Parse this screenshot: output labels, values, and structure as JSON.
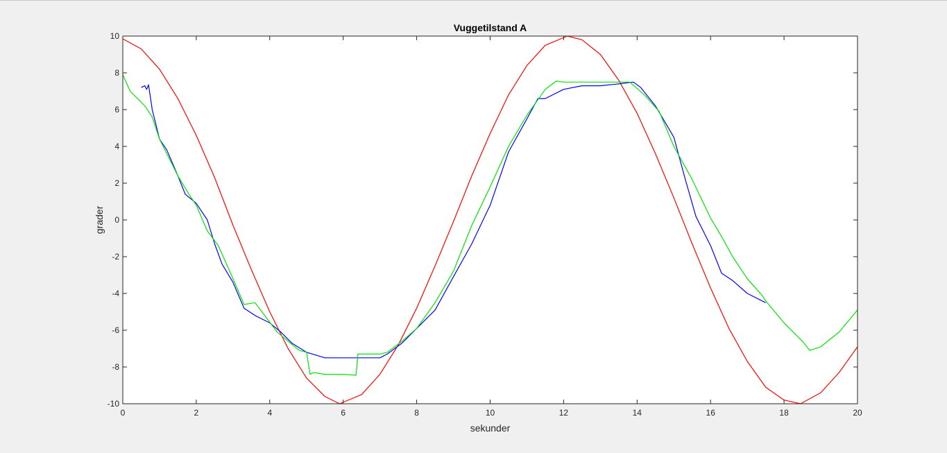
{
  "chart_data": {
    "type": "line",
    "title": "Vuggetilstand A",
    "xlabel": "sekunder",
    "ylabel": "grader",
    "xlim": [
      0,
      20
    ],
    "ylim": [
      -10,
      10
    ],
    "xticks": [
      0,
      2,
      4,
      6,
      8,
      10,
      12,
      14,
      16,
      18,
      20
    ],
    "yticks": [
      -10,
      -8,
      -6,
      -4,
      -2,
      0,
      2,
      4,
      6,
      8,
      10
    ],
    "xtick_labels": [
      "0",
      "2",
      "4",
      "6",
      "8",
      "10",
      "12",
      "14",
      "16",
      "18",
      "20"
    ],
    "ytick_labels": [
      "-10",
      "-8",
      "-6",
      "-4",
      "-2",
      "0",
      "2",
      "4",
      "6",
      "8",
      "10"
    ],
    "grid": false,
    "series": [
      {
        "color": "#ff0000",
        "x": [
          0,
          0.5,
          1,
          1.5,
          2,
          2.5,
          3,
          3.5,
          4,
          4.5,
          5,
          5.5,
          5.9,
          6.5,
          7,
          7.5,
          8,
          8.5,
          9,
          9.5,
          10,
          10.5,
          11,
          11.5,
          12.1,
          12.5,
          13,
          13.5,
          14,
          14.5,
          15,
          15.5,
          16,
          16.5,
          17,
          17.5,
          18,
          18.45,
          19,
          19.5,
          20
        ],
        "y": [
          9.85,
          9.3,
          8.2,
          6.6,
          4.6,
          2.3,
          -0.3,
          -2.7,
          -5.0,
          -7.0,
          -8.6,
          -9.6,
          -10.0,
          -9.5,
          -8.4,
          -6.8,
          -4.8,
          -2.5,
          -0.1,
          2.4,
          4.7,
          6.8,
          8.4,
          9.5,
          10.0,
          9.8,
          9.0,
          7.6,
          5.8,
          3.6,
          1.2,
          -1.3,
          -3.7,
          -5.9,
          -7.7,
          -9.1,
          -9.8,
          -10.0,
          -9.4,
          -8.3,
          -6.9
        ]
      },
      {
        "color": "#0000ff",
        "x": [
          0.5,
          0.6,
          0.65,
          0.7,
          0.8,
          1.0,
          1.2,
          1.5,
          1.7,
          2.0,
          2.3,
          2.5,
          2.7,
          3.0,
          3.3,
          3.6,
          4.0,
          4.3,
          4.6,
          5.0,
          5.5,
          6.0,
          6.5,
          7.0,
          7.2,
          7.6,
          8.0,
          8.5,
          9.0,
          9.5,
          10.0,
          10.5,
          11.0,
          11.3,
          11.5,
          12.0,
          12.5,
          13.0,
          13.5,
          13.9,
          14.1,
          14.5,
          15.0,
          15.3,
          15.6,
          16.0,
          16.3,
          16.6,
          17.0,
          17.5
        ],
        "y": [
          7.2,
          7.3,
          7.1,
          7.35,
          6.0,
          4.4,
          3.8,
          2.4,
          1.4,
          0.9,
          0.0,
          -1.3,
          -2.4,
          -3.4,
          -4.8,
          -5.2,
          -5.6,
          -6.1,
          -6.7,
          -7.2,
          -7.5,
          -7.5,
          -7.5,
          -7.5,
          -7.3,
          -6.7,
          -5.9,
          -4.9,
          -3.1,
          -1.3,
          0.8,
          3.7,
          5.5,
          6.6,
          6.6,
          7.1,
          7.3,
          7.3,
          7.4,
          7.5,
          7.2,
          6.2,
          4.5,
          2.3,
          0.2,
          -1.4,
          -2.9,
          -3.3,
          -4.0,
          -4.5
        ]
      },
      {
        "color": "#00e400",
        "x": [
          0,
          0.2,
          0.4,
          0.6,
          0.8,
          1.0,
          1.2,
          1.5,
          1.8,
          2.0,
          2.3,
          2.6,
          3.0,
          3.3,
          3.6,
          3.9,
          4.2,
          4.5,
          4.8,
          5.0,
          5.1,
          5.2,
          5.5,
          6.0,
          6.35,
          6.4,
          6.6,
          7.0,
          7.2,
          7.6,
          8.0,
          8.5,
          9.0,
          9.5,
          10.0,
          10.5,
          11.0,
          11.5,
          11.8,
          12.0,
          12.5,
          13.0,
          13.5,
          13.8,
          14.2,
          14.6,
          15.0,
          15.5,
          16.0,
          16.3,
          16.6,
          17.0,
          17.4,
          17.5,
          18.0,
          18.5,
          18.7,
          19.0,
          19.5,
          20.0
        ],
        "y": [
          7.9,
          7.0,
          6.6,
          6.2,
          5.6,
          4.4,
          3.6,
          2.4,
          1.4,
          0.8,
          -0.6,
          -1.4,
          -3.2,
          -4.6,
          -4.5,
          -5.3,
          -6.1,
          -6.6,
          -7.1,
          -7.2,
          -8.4,
          -8.3,
          -8.4,
          -8.4,
          -8.45,
          -7.3,
          -7.3,
          -7.3,
          -7.2,
          -6.6,
          -5.9,
          -4.5,
          -2.8,
          -0.3,
          1.8,
          4.0,
          5.7,
          7.1,
          7.55,
          7.5,
          7.5,
          7.5,
          7.5,
          7.5,
          6.8,
          5.9,
          4.0,
          2.2,
          0.1,
          -0.9,
          -2.0,
          -3.2,
          -4.1,
          -4.4,
          -5.6,
          -6.6,
          -7.1,
          -6.9,
          -6.1,
          -4.9
        ]
      }
    ]
  }
}
